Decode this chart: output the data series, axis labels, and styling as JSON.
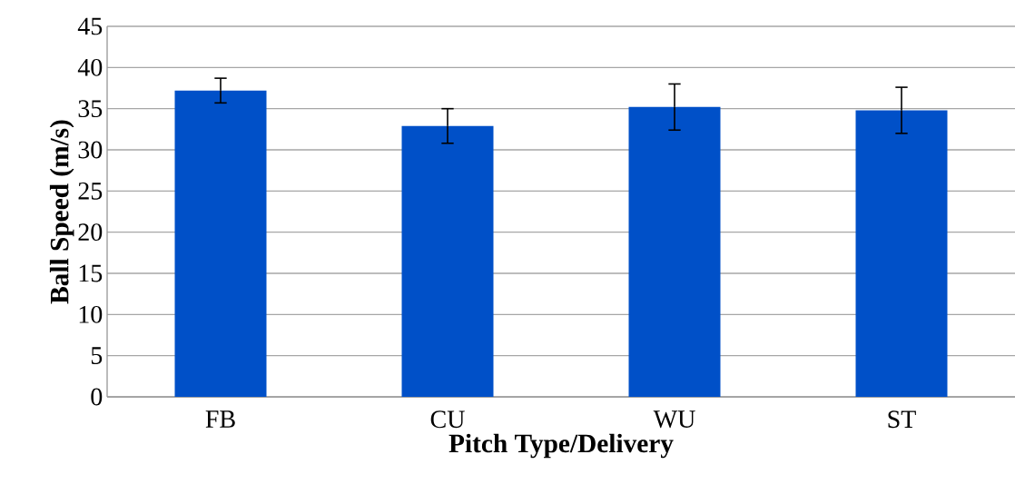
{
  "chart_data": {
    "type": "bar",
    "xlabel": "Pitch Type/Delivery",
    "ylabel": "Ball Speed (m/s)",
    "categories": [
      "FB",
      "CU",
      "WU",
      "ST"
    ],
    "values": [
      37.2,
      32.9,
      35.2,
      34.8
    ],
    "errors": [
      1.5,
      2.1,
      2.8,
      2.8
    ],
    "color": "#0050c8",
    "ylim": [
      0,
      45
    ],
    "yticks": [
      0,
      5,
      10,
      15,
      20,
      25,
      30,
      35,
      40,
      45
    ],
    "grid": "y"
  }
}
